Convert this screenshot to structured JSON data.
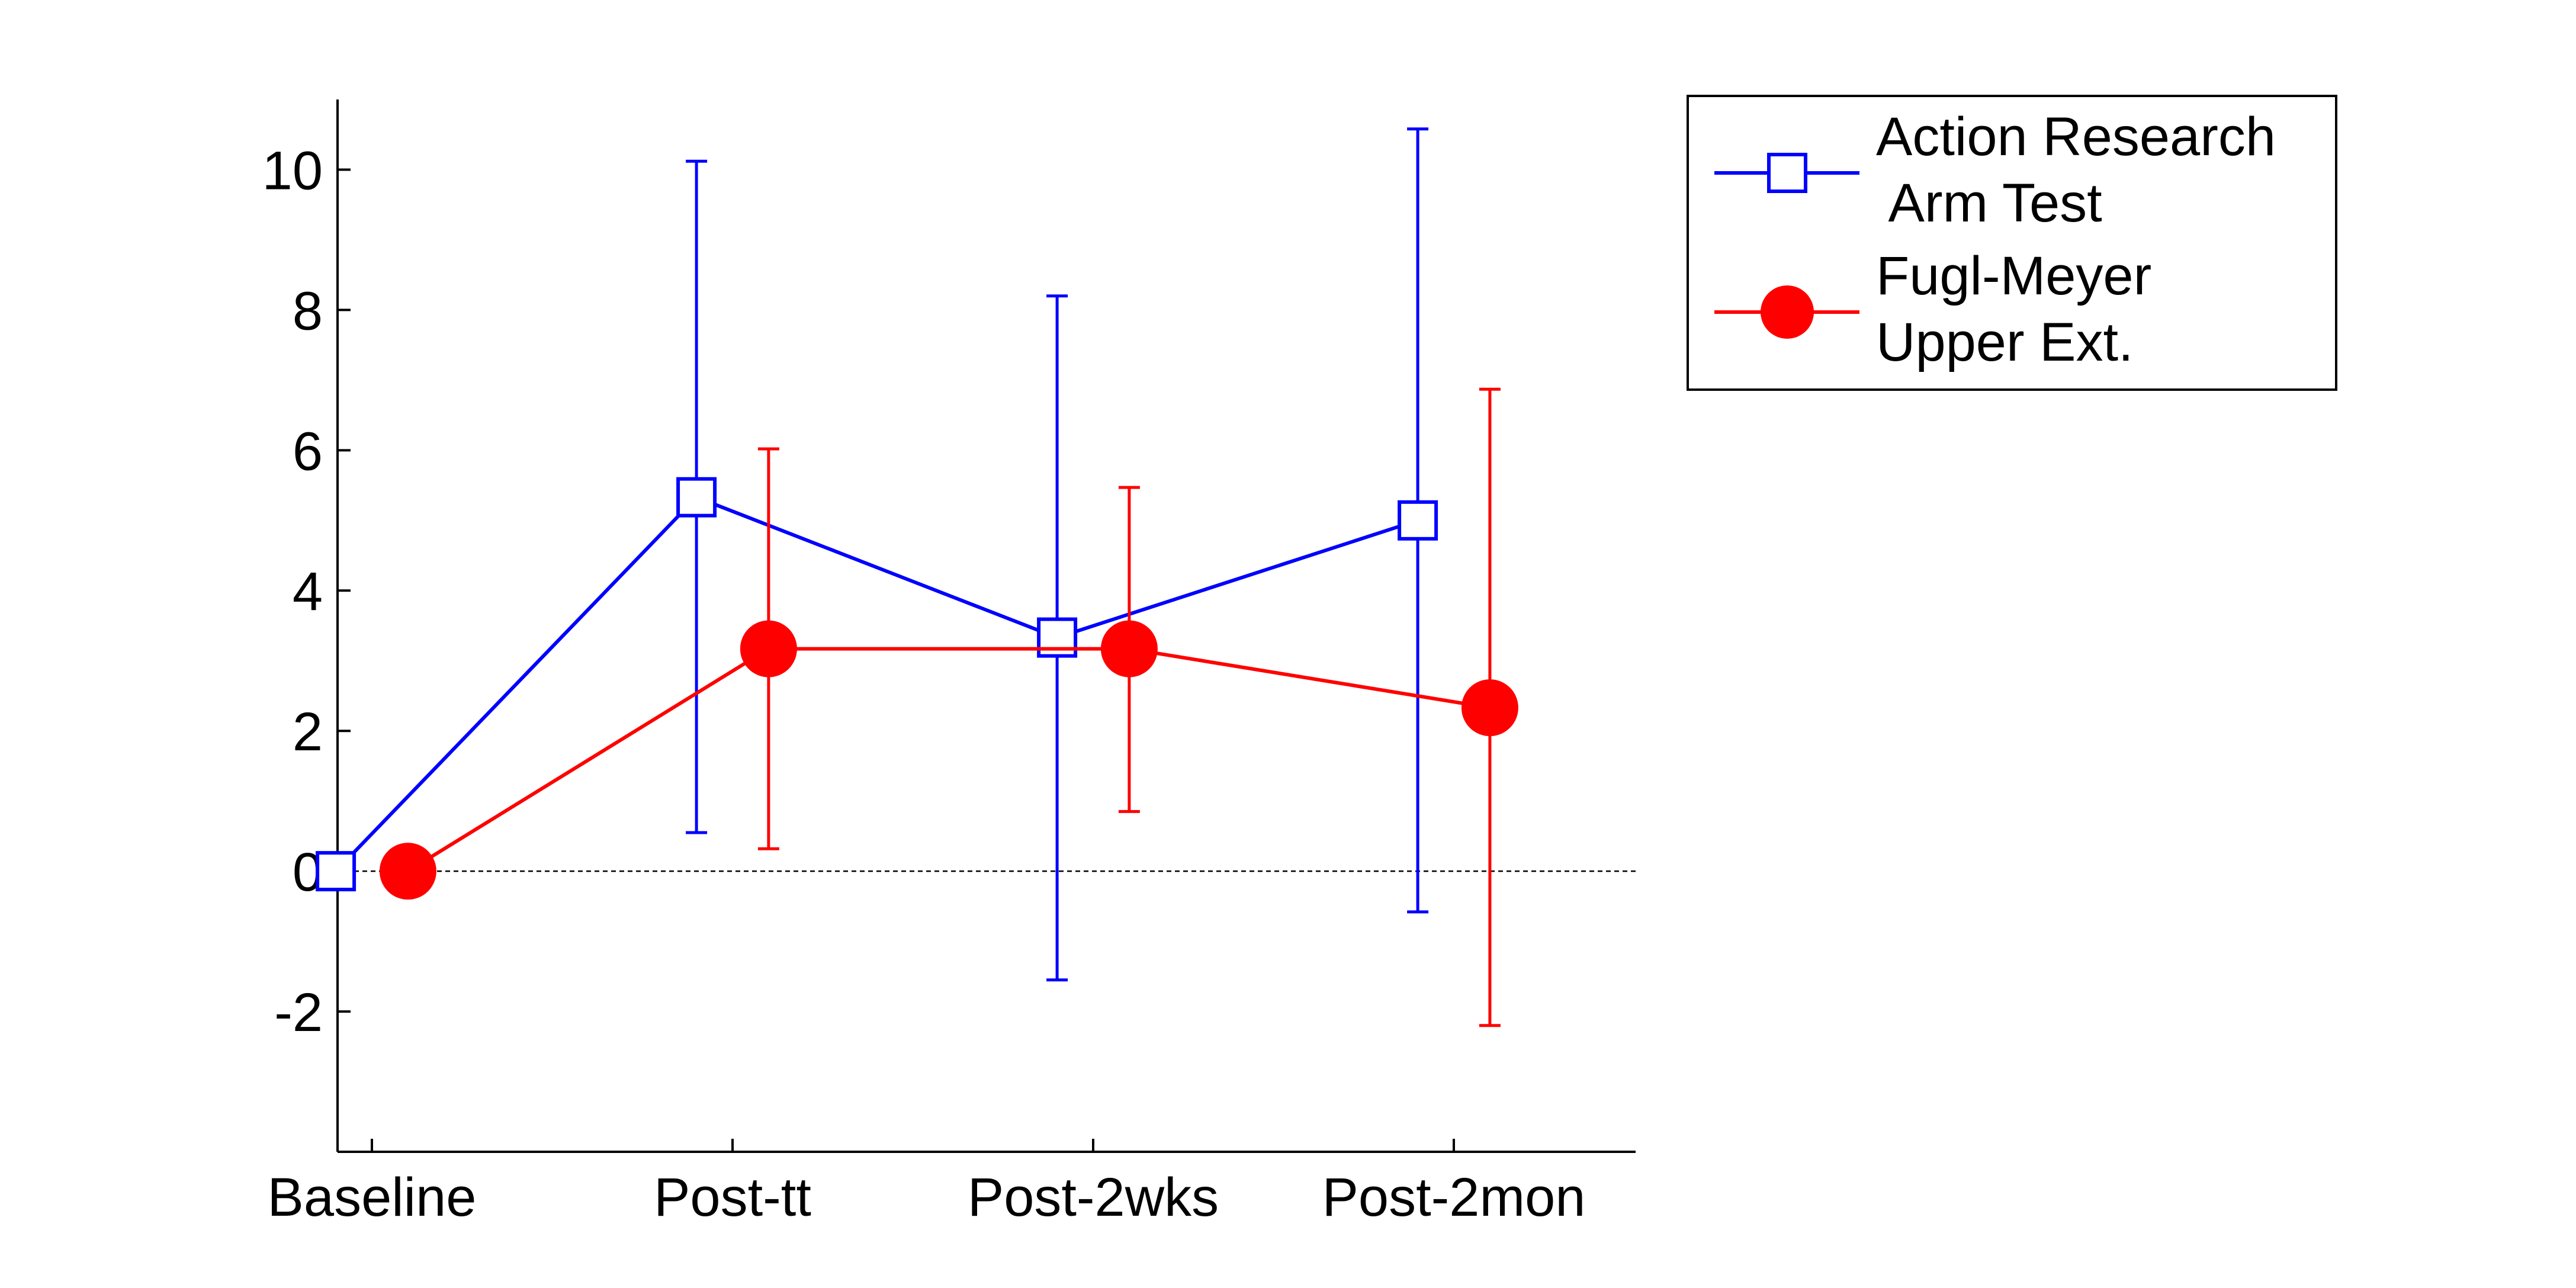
{
  "chart_data": {
    "type": "line",
    "title": "",
    "xlabel": "",
    "ylabel": "",
    "categories": [
      "Baseline",
      "Post-tt",
      "Post-2wks",
      "Post-2mon"
    ],
    "ylim": [
      -4,
      11
    ],
    "yticks": [
      -2,
      0,
      2,
      4,
      6,
      8,
      10
    ],
    "ytick_labels": [
      "-2",
      "0",
      "2",
      "4",
      "6",
      "8",
      "10"
    ],
    "reference_line": {
      "y": 0,
      "style": "dashed",
      "color": "#000000"
    },
    "grid": false,
    "legend_position": "outside-top-right",
    "series": [
      {
        "name_lines": [
          "Action Research",
          " Arm Test"
        ],
        "color": "#0000ff",
        "marker": "square-open",
        "x_offset": -0.1,
        "values": [
          0,
          5.33,
          3.33,
          5.0
        ],
        "err_low": [
          0,
          0.55,
          -1.55,
          -0.58
        ],
        "err_high": [
          0,
          10.12,
          8.2,
          10.58
        ]
      },
      {
        "name_lines": [
          "Fugl-Meyer",
          "Upper Ext."
        ],
        "color": "#ff0000",
        "marker": "circle-filled",
        "x_offset": 0.1,
        "values": [
          0,
          3.17,
          3.17,
          2.33
        ],
        "err_low": [
          0,
          0.32,
          0.85,
          -2.2
        ],
        "err_high": [
          0,
          6.02,
          5.47,
          6.87
        ]
      }
    ]
  }
}
